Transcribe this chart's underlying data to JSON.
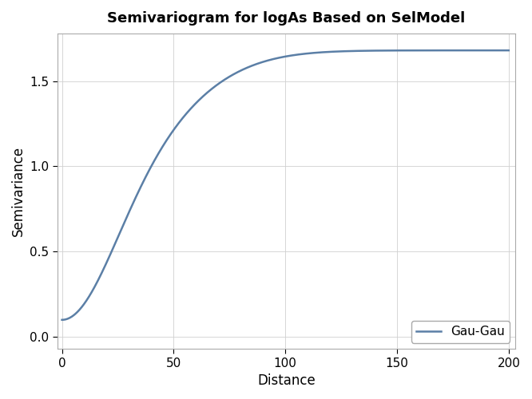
{
  "title": "Semivariogram for logAs Based on SelModel",
  "xlabel": "Distance",
  "ylabel": "Semivariance",
  "legend_label": "Gau-Gau",
  "line_color": "#5b7fa6",
  "background_color": "#ffffff",
  "plot_bg_color": "#ffffff",
  "xlim": [
    -2,
    203
  ],
  "ylim": [
    -0.07,
    1.78
  ],
  "xticks": [
    0,
    50,
    100,
    150,
    200
  ],
  "yticks": [
    0.0,
    0.5,
    1.0,
    1.5
  ],
  "nugget": 0.1,
  "c1": 0.6,
  "a1": 30.0,
  "c2": 0.98,
  "a2": 55.0,
  "x_start": 0.0,
  "x_end": 200,
  "title_fontsize": 13,
  "axis_label_fontsize": 12,
  "tick_fontsize": 11,
  "legend_fontsize": 11,
  "line_width": 1.8
}
